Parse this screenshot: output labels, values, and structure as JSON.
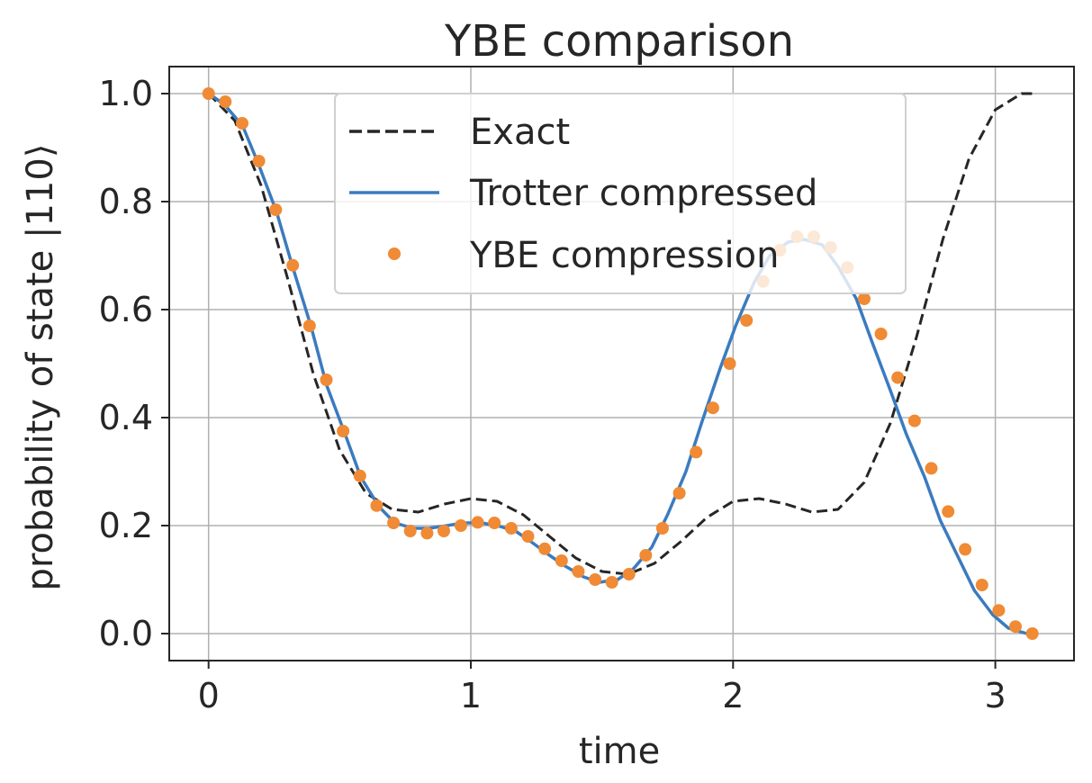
{
  "chart_data": {
    "type": "line",
    "title": "YBE comparison",
    "xlabel": "time",
    "ylabel": "probability of state |110⟩",
    "xlim": [
      -0.15,
      3.3
    ],
    "ylim": [
      -0.05,
      1.05
    ],
    "xticks": [
      0,
      1,
      2,
      3
    ],
    "yticks": [
      0.0,
      0.2,
      0.4,
      0.6,
      0.8,
      1.0
    ],
    "grid": true,
    "legend_position": "top-center",
    "colors": {
      "exact": "#262626",
      "trotter": "#3b7bbf",
      "ybe": "#f08a35"
    },
    "series": [
      {
        "name": "Exact",
        "style": "dashed",
        "x": [
          0,
          0.1,
          0.2,
          0.3,
          0.4,
          0.5,
          0.6,
          0.7,
          0.8,
          0.9,
          1.0,
          1.1,
          1.2,
          1.3,
          1.4,
          1.5,
          1.6,
          1.7,
          1.8,
          1.9,
          2.0,
          2.1,
          2.2,
          2.3,
          2.4,
          2.5,
          2.6,
          2.7,
          2.8,
          2.9,
          3.0,
          3.1,
          3.14
        ],
        "y": [
          1.0,
          0.95,
          0.83,
          0.66,
          0.48,
          0.34,
          0.26,
          0.23,
          0.225,
          0.24,
          0.25,
          0.245,
          0.22,
          0.18,
          0.14,
          0.115,
          0.11,
          0.13,
          0.17,
          0.215,
          0.245,
          0.25,
          0.24,
          0.225,
          0.23,
          0.28,
          0.39,
          0.55,
          0.73,
          0.88,
          0.97,
          1.0,
          1.0
        ]
      },
      {
        "name": "Trotter compressed",
        "style": "solid",
        "x": [
          0,
          0.06,
          0.13,
          0.19,
          0.26,
          0.32,
          0.39,
          0.45,
          0.52,
          0.58,
          0.65,
          0.71,
          0.78,
          0.84,
          0.91,
          0.97,
          1.04,
          1.1,
          1.17,
          1.23,
          1.3,
          1.36,
          1.43,
          1.49,
          1.56,
          1.62,
          1.69,
          1.75,
          1.82,
          1.88,
          1.95,
          2.01,
          2.08,
          2.14,
          2.21,
          2.27,
          2.34,
          2.4,
          2.47,
          2.53,
          2.6,
          2.66,
          2.73,
          2.79,
          2.86,
          2.92,
          2.99,
          3.05,
          3.12,
          3.14
        ],
        "y": [
          1.0,
          0.98,
          0.94,
          0.87,
          0.78,
          0.68,
          0.57,
          0.46,
          0.37,
          0.29,
          0.235,
          0.205,
          0.195,
          0.195,
          0.2,
          0.205,
          0.205,
          0.2,
          0.19,
          0.17,
          0.145,
          0.125,
          0.105,
          0.095,
          0.1,
          0.12,
          0.16,
          0.22,
          0.3,
          0.39,
          0.49,
          0.57,
          0.65,
          0.7,
          0.725,
          0.73,
          0.72,
          0.68,
          0.62,
          0.54,
          0.45,
          0.37,
          0.29,
          0.21,
          0.14,
          0.08,
          0.035,
          0.01,
          0.0,
          0.0
        ]
      },
      {
        "name": "YBE compression",
        "style": "markers",
        "x": [
          0.0,
          0.064,
          0.128,
          0.192,
          0.256,
          0.321,
          0.385,
          0.449,
          0.513,
          0.577,
          0.641,
          0.705,
          0.769,
          0.833,
          0.897,
          0.962,
          1.026,
          1.09,
          1.154,
          1.218,
          1.282,
          1.346,
          1.41,
          1.474,
          1.538,
          1.603,
          1.667,
          1.731,
          1.795,
          1.859,
          1.923,
          1.987,
          2.051,
          2.115,
          2.179,
          2.244,
          2.308,
          2.372,
          2.436,
          2.5,
          2.564,
          2.628,
          2.692,
          2.756,
          2.82,
          2.885,
          2.949,
          3.013,
          3.077,
          3.141
        ],
        "y": [
          1.0,
          0.985,
          0.945,
          0.875,
          0.785,
          0.682,
          0.57,
          0.47,
          0.375,
          0.292,
          0.237,
          0.205,
          0.19,
          0.186,
          0.19,
          0.2,
          0.206,
          0.205,
          0.195,
          0.18,
          0.157,
          0.135,
          0.115,
          0.1,
          0.095,
          0.11,
          0.145,
          0.195,
          0.26,
          0.336,
          0.418,
          0.5,
          0.58,
          0.652,
          0.71,
          0.735,
          0.735,
          0.715,
          0.678,
          0.62,
          0.555,
          0.474,
          0.394,
          0.306,
          0.226,
          0.156,
          0.09,
          0.043,
          0.013,
          0.0
        ]
      }
    ]
  }
}
